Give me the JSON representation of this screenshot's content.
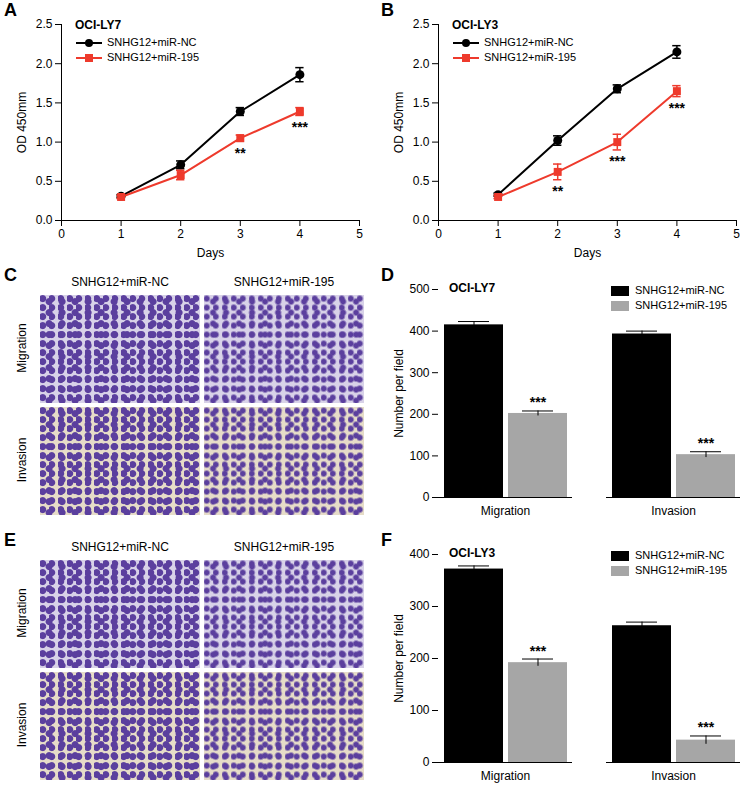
{
  "chart_data": [
    {
      "type": "line",
      "panel": "A",
      "title": "OCI-LY7",
      "xlabel": "Days",
      "ylabel": "OD 450mm",
      "x": [
        1,
        2,
        3,
        4
      ],
      "xlim": [
        0,
        5
      ],
      "xticks": [
        0,
        1,
        2,
        3,
        4,
        5
      ],
      "ylim": [
        0,
        2.5
      ],
      "yticks": [
        {
          "value": 0,
          "label": "0.0"
        },
        {
          "value": 0.5,
          "label": "0.5"
        },
        {
          "value": 1,
          "label": "1.0"
        },
        {
          "value": 1.5,
          "label": "1.5"
        },
        {
          "value": 2,
          "label": "2.0"
        },
        {
          "value": 2.5,
          "label": "2.5"
        }
      ],
      "legend": "top-left",
      "series": [
        {
          "name": "SNHG12+miR-NC",
          "color": "#000000",
          "marker": "circle",
          "values": [
            0.31,
            0.71,
            1.39,
            1.86
          ],
          "errors": [
            0.02,
            0.05,
            0.05,
            0.09
          ]
        },
        {
          "name": "SNHG12+miR-195",
          "color": "#ee3a2c",
          "marker": "square",
          "values": [
            0.3,
            0.58,
            1.05,
            1.39
          ],
          "errors": [
            0.02,
            0.06,
            0.04,
            0.05
          ],
          "annotations": [
            null,
            null,
            "**",
            "***"
          ]
        }
      ]
    },
    {
      "type": "line",
      "panel": "B",
      "title": "OCI-LY3",
      "xlabel": "Days",
      "ylabel": "OD 450mm",
      "x": [
        1,
        2,
        3,
        4
      ],
      "xlim": [
        0,
        5
      ],
      "xticks": [
        0,
        1,
        2,
        3,
        4,
        5
      ],
      "ylim": [
        0,
        2.5
      ],
      "yticks": [
        {
          "value": 0,
          "label": "0.0"
        },
        {
          "value": 0.5,
          "label": "0.5"
        },
        {
          "value": 1,
          "label": "1.0"
        },
        {
          "value": 1.5,
          "label": "1.5"
        },
        {
          "value": 2,
          "label": "2.0"
        },
        {
          "value": 2.5,
          "label": "2.5"
        }
      ],
      "legend": "top-left",
      "series": [
        {
          "name": "SNHG12+miR-NC",
          "color": "#000000",
          "marker": "circle",
          "values": [
            0.33,
            1.02,
            1.68,
            2.15
          ],
          "errors": [
            0.02,
            0.06,
            0.05,
            0.08
          ]
        },
        {
          "name": "SNHG12+miR-195",
          "color": "#ee3a2c",
          "marker": "square",
          "values": [
            0.3,
            0.62,
            1.0,
            1.65
          ],
          "errors": [
            0.02,
            0.1,
            0.1,
            0.07
          ],
          "annotations": [
            null,
            "**",
            "***",
            "***"
          ]
        }
      ]
    },
    {
      "type": "image_grid",
      "panel": "C",
      "columns": [
        "SNHG12+miR-NC",
        "SNHG12+miR-195"
      ],
      "rows": [
        "Migration",
        "Invasion"
      ],
      "color": "#5b3f9e"
    },
    {
      "type": "bar",
      "panel": "D",
      "title": "OCI-LY7",
      "ylabel": "Number per field",
      "categories": [
        "Migration",
        "Invasion"
      ],
      "ylim": [
        0,
        500
      ],
      "yticks": [
        0,
        100,
        200,
        300,
        400,
        500
      ],
      "legend": "top-right",
      "series": [
        {
          "name": "SNHG12+miR-NC",
          "color": "#000000",
          "values": [
            415,
            393
          ],
          "errors": [
            8,
            7
          ]
        },
        {
          "name": "SNHG12+miR-195",
          "color": "#a6a6a6",
          "values": [
            202,
            103
          ],
          "errors": [
            6,
            7
          ],
          "annotations": [
            "***",
            "***"
          ]
        }
      ]
    },
    {
      "type": "image_grid",
      "panel": "E",
      "columns": [
        "SNHG12+miR-NC",
        "SNHG12+miR-195"
      ],
      "rows": [
        "Migration",
        "Invasion"
      ],
      "color": "#5b3f9e"
    },
    {
      "type": "bar",
      "panel": "F",
      "title": "OCI-LY3",
      "ylabel": "Number per field",
      "categories": [
        "Migration",
        "Invasion"
      ],
      "ylim": [
        0,
        400
      ],
      "yticks": [
        0,
        100,
        200,
        300,
        400
      ],
      "legend": "top-right",
      "series": [
        {
          "name": "SNHG12+miR-NC",
          "color": "#000000",
          "values": [
            372,
            263
          ],
          "errors": [
            6,
            7
          ]
        },
        {
          "name": "SNHG12+miR-195",
          "color": "#a6a6a6",
          "values": [
            192,
            43
          ],
          "errors": [
            7,
            8
          ],
          "annotations": [
            "***",
            "***"
          ]
        }
      ]
    }
  ]
}
